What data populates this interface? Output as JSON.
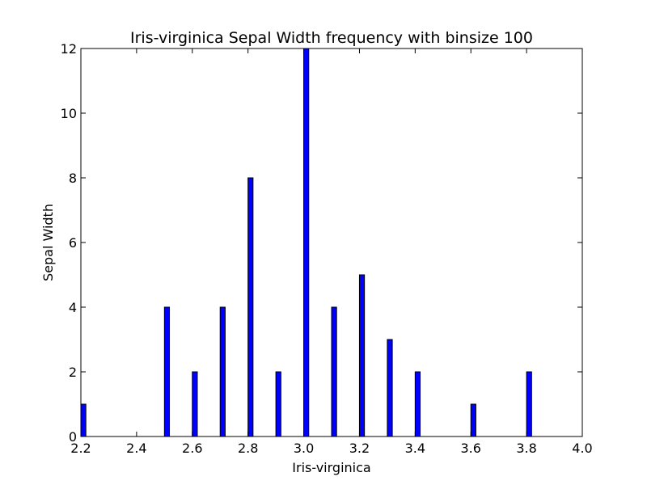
{
  "chart_data": {
    "type": "bar",
    "title": "Iris-virginica Sepal Width frequency with binsize 100",
    "xlabel": "Iris-virginica",
    "ylabel": "Sepal Width",
    "xlim": [
      2.2,
      4.0
    ],
    "ylim": [
      0,
      12
    ],
    "bin_width": 0.018,
    "xticks": [
      "2.2",
      "2.4",
      "2.6",
      "2.8",
      "3.0",
      "3.2",
      "3.4",
      "3.6",
      "3.8",
      "4.0"
    ],
    "yticks": [
      "0",
      "2",
      "4",
      "6",
      "8",
      "10",
      "12"
    ],
    "bins": [
      {
        "x": 2.2,
        "count": 1
      },
      {
        "x": 2.5,
        "count": 4
      },
      {
        "x": 2.6,
        "count": 2
      },
      {
        "x": 2.7,
        "count": 4
      },
      {
        "x": 2.8,
        "count": 8
      },
      {
        "x": 2.9,
        "count": 2
      },
      {
        "x": 3.0,
        "count": 12
      },
      {
        "x": 3.1,
        "count": 4
      },
      {
        "x": 3.2,
        "count": 5
      },
      {
        "x": 3.3,
        "count": 3
      },
      {
        "x": 3.4,
        "count": 2
      },
      {
        "x": 3.6,
        "count": 1
      },
      {
        "x": 3.8,
        "count": 2
      }
    ],
    "bar_color": "#0000ff",
    "bar_edge_color": "#000000",
    "grid": false,
    "legend": "none"
  }
}
